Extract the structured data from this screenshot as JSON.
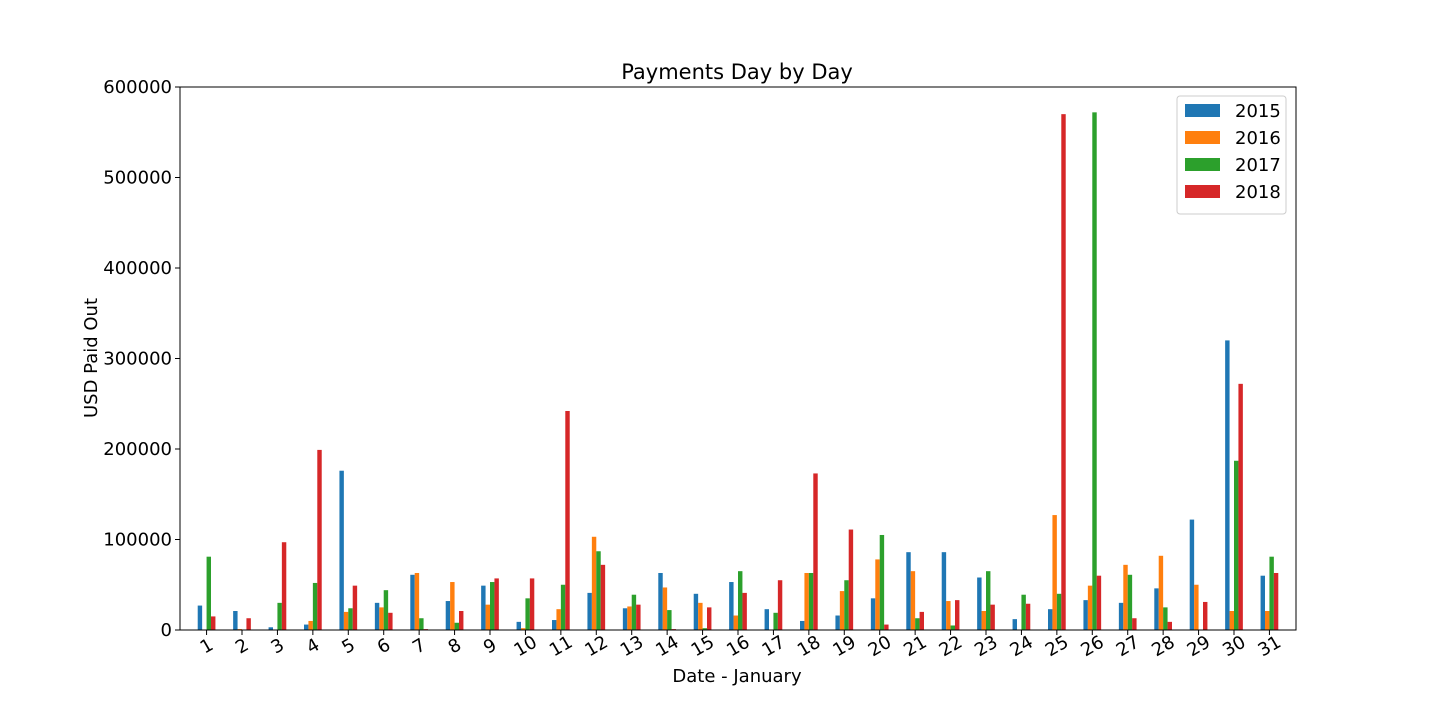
{
  "chart_data": {
    "type": "bar",
    "title": "Payments Day by Day",
    "xlabel": "Date - January",
    "ylabel": "USD Paid Out",
    "ylim": [
      0,
      600000
    ],
    "yticks": [
      "0",
      "100000",
      "200000",
      "300000",
      "400000",
      "500000",
      "600000"
    ],
    "ytick_values": [
      0,
      100000,
      200000,
      300000,
      400000,
      500000,
      600000
    ],
    "grid": false,
    "legend_position": "top-right",
    "categories": [
      "1",
      "2",
      "3",
      "4",
      "5",
      "6",
      "7",
      "8",
      "9",
      "10",
      "11",
      "12",
      "13",
      "14",
      "15",
      "16",
      "17",
      "18",
      "19",
      "20",
      "21",
      "22",
      "23",
      "24",
      "25",
      "26",
      "27",
      "28",
      "29",
      "30",
      "31"
    ],
    "series": [
      {
        "name": "2015",
        "color": "#1f77b4",
        "values": [
          27000,
          21000,
          3000,
          6000,
          176000,
          30000,
          61000,
          32000,
          49000,
          9000,
          11000,
          41000,
          24000,
          63000,
          40000,
          53000,
          23000,
          10000,
          16000,
          35000,
          86000,
          86000,
          58000,
          12000,
          23000,
          33000,
          30000,
          46000,
          122000,
          320000,
          60000
        ]
      },
      {
        "name": "2016",
        "color": "#ff7f0e",
        "values": [
          0,
          1000,
          0,
          10000,
          20000,
          25000,
          63000,
          53000,
          28000,
          2000,
          23000,
          103000,
          26000,
          47000,
          30000,
          16000,
          0,
          63000,
          43000,
          78000,
          65000,
          32000,
          21000,
          0,
          127000,
          49000,
          72000,
          82000,
          50000,
          21000,
          21000
        ]
      },
      {
        "name": "2017",
        "color": "#2ca02c",
        "values": [
          81000,
          0,
          30000,
          52000,
          24000,
          44000,
          13000,
          8000,
          53000,
          35000,
          50000,
          87000,
          39000,
          22000,
          2000,
          65000,
          19000,
          63000,
          55000,
          105000,
          13000,
          5000,
          65000,
          39000,
          40000,
          572000,
          61000,
          25000,
          0,
          187000,
          81000
        ]
      },
      {
        "name": "2018",
        "color": "#d62728",
        "values": [
          15000,
          13000,
          97000,
          199000,
          49000,
          19000,
          1000,
          21000,
          57000,
          57000,
          242000,
          72000,
          28000,
          1000,
          25000,
          41000,
          55000,
          173000,
          111000,
          6000,
          20000,
          33000,
          28000,
          29000,
          570000,
          60000,
          13000,
          9000,
          31000,
          272000,
          63000
        ]
      }
    ]
  }
}
